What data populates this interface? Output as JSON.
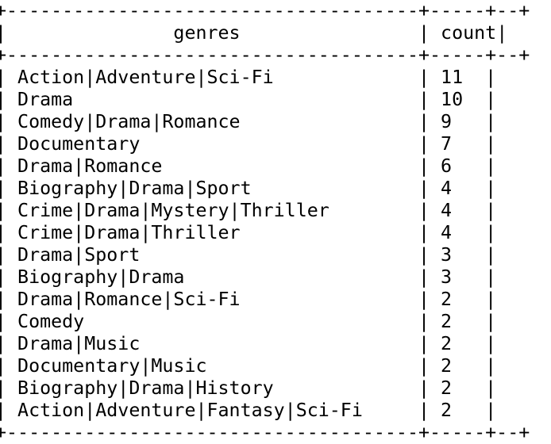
{
  "table": {
    "border": "+-------------------------------------+-----+--+",
    "header": {
      "col_genres": "genres",
      "col_count": "count"
    },
    "rows": [
      {
        "genres": "Action|Adventure|Sci-Fi",
        "count": "11"
      },
      {
        "genres": "Drama",
        "count": "10"
      },
      {
        "genres": "Comedy|Drama|Romance",
        "count": "9"
      },
      {
        "genres": "Documentary",
        "count": "7"
      },
      {
        "genres": "Drama|Romance",
        "count": "6"
      },
      {
        "genres": "Biography|Drama|Sport",
        "count": "4"
      },
      {
        "genres": "Crime|Drama|Mystery|Thriller",
        "count": "4"
      },
      {
        "genres": "Crime|Drama|Thriller",
        "count": "4"
      },
      {
        "genres": "Drama|Sport",
        "count": "3"
      },
      {
        "genres": "Biography|Drama",
        "count": "3"
      },
      {
        "genres": "Drama|Romance|Sci-Fi",
        "count": "2"
      },
      {
        "genres": "Comedy",
        "count": "2"
      },
      {
        "genres": "Drama|Music",
        "count": "2"
      },
      {
        "genres": "Documentary|Music",
        "count": "2"
      },
      {
        "genres": "Biography|Drama|History",
        "count": "2"
      },
      {
        "genres": "Action|Adventure|Fantasy|Sci-Fi",
        "count": "2"
      }
    ]
  },
  "colors": {
    "background": "#ffffff",
    "text": "#000000"
  }
}
